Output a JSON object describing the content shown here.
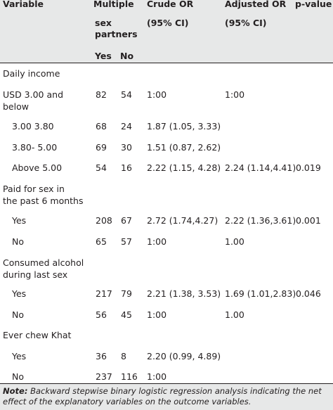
{
  "header": {
    "variable": "Variable",
    "multiple": "Multiple",
    "sex_partners_1": "sex",
    "sex_partners_2": "partners",
    "yes": "Yes",
    "no": "No",
    "crude_or": "Crude OR",
    "crude_ci": "(95% CI)",
    "adjusted_or": "Adjusted OR",
    "adjusted_ci": "(95% CI)",
    "p_value": "p-value"
  },
  "rows": [
    {
      "label": "Daily income",
      "yes": "",
      "no": "",
      "crude": "",
      "adjusted": "",
      "p": ""
    },
    {
      "label": "USD 3.00 and",
      "label2": "below",
      "yes": "82",
      "no": "54",
      "crude": "1:00",
      "adjusted": "1:00",
      "p": ""
    },
    {
      "label": "3.00 3.80",
      "yes": "68",
      "no": "24",
      "crude": "1.87 (1.05, 3.33)",
      "adjusted": "",
      "p": ""
    },
    {
      "label": "3.80- 5.00",
      "yes": "69",
      "no": "30",
      "crude": "1.51 (0.87, 2.62)",
      "adjusted": "",
      "p": ""
    },
    {
      "label": "Above 5.00",
      "yes": "54",
      "no": "16",
      "crude": "2.22 (1.15, 4.28)",
      "adjusted": "2.24 (1.14,4.41)",
      "p": "0.019"
    },
    {
      "label": "Paid for sex in",
      "label2": "the past 6 months",
      "yes": "",
      "no": "",
      "crude": "",
      "adjusted": "",
      "p": ""
    },
    {
      "label": "Yes",
      "yes": "208",
      "no": "67",
      "crude": "2.72 (1.74,4.27)",
      "adjusted": "2.22 (1.36,3.61)",
      "p": "0.001"
    },
    {
      "label": "No",
      "yes": "65",
      "no": "57",
      "crude": "1:00",
      "adjusted": "1.00",
      "p": ""
    },
    {
      "label": "Consumed alcohol",
      "label2": "during last sex",
      "yes": "",
      "no": "",
      "crude": "",
      "adjusted": "",
      "p": ""
    },
    {
      "label": "Yes",
      "yes": "217",
      "no": "79",
      "crude": "2.21 (1.38, 3.53)",
      "adjusted": "1.69 (1.01,2.83)",
      "p": "0.046"
    },
    {
      "label": "No",
      "yes": "56",
      "no": "45",
      "crude": "1:00",
      "adjusted": "1.00",
      "p": ""
    },
    {
      "label": "Ever chew Khat",
      "yes": "",
      "no": "",
      "crude": "",
      "adjusted": "",
      "p": ""
    },
    {
      "label": "Yes",
      "yes": "36",
      "no": "8",
      "crude": "2.20 (0.99, 4.89)",
      "adjusted": "",
      "p": ""
    },
    {
      "label": "No",
      "yes": "237",
      "no": "116",
      "crude": "1:00",
      "adjusted": "",
      "p": ""
    }
  ],
  "note": {
    "label": "Note:",
    "text": "Backward stepwise binary logistic regression analysis indicating the net effect of the explanatory variables on the outcome variables."
  }
}
